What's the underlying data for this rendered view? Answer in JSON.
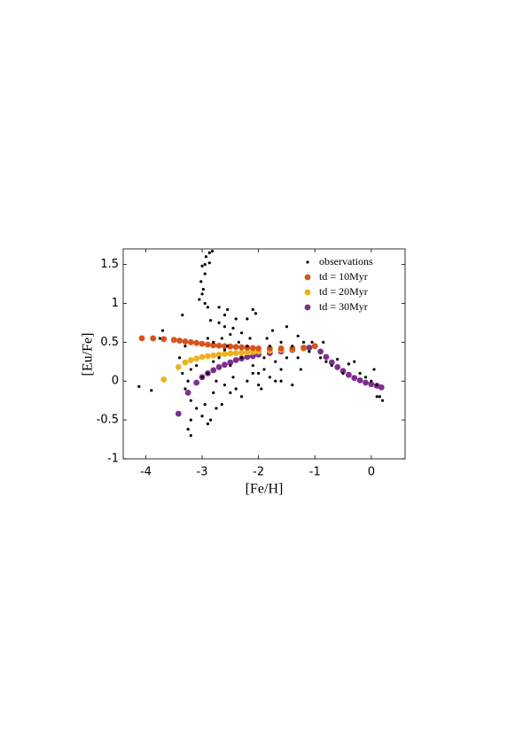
{
  "chart_data": {
    "type": "scatter",
    "xlabel": "[Fe/H]",
    "ylabel": "[Eu/Fe]",
    "xlim": [
      -4.4,
      0.6
    ],
    "ylim": [
      -1,
      1.7
    ],
    "xticks": [
      -4,
      -3,
      -2,
      -1,
      0
    ],
    "yticks": [
      -1,
      -0.5,
      0,
      0.5,
      1,
      1.5
    ],
    "legend": "upper right",
    "series": [
      {
        "name": "observations",
        "color": "#000000",
        "x": [
          -2.82,
          -2.87,
          -2.93,
          -2.87,
          -2.95,
          -3.0,
          -2.95,
          -3.02,
          -2.98,
          -3.0,
          -2.95,
          -2.9,
          -3.05,
          -3.35,
          -2.7,
          -2.6,
          -2.55,
          -2.1,
          -2.05,
          -2.2,
          -2.4,
          -2.6,
          -2.7,
          -2.85,
          -2.5,
          -2.3,
          -2.45,
          -3.7,
          -3.75,
          -1.5,
          -1.75,
          -1.3,
          -2.8,
          -2.9,
          -2.65,
          -3.2,
          -3.25,
          -3.2,
          -3.0,
          -3.1,
          -2.9,
          -2.85,
          -2.95,
          -3.2,
          -3.3,
          -3.25,
          -4.12,
          -3.9,
          -2.8,
          -2.6,
          -2.4,
          -2.2,
          -2.0,
          -1.8,
          -1.6,
          -1.4,
          -0.9,
          -0.8,
          -0.7,
          -0.6,
          -0.4,
          -0.3,
          -0.2,
          -0.1,
          0.0,
          0.05,
          0.1,
          0.1,
          0.15,
          0.2,
          -0.5,
          -1.2,
          -1.05,
          -0.85,
          -1.1,
          -1.4,
          -1.6,
          -1.8,
          -1.9,
          -2.1,
          -2.3,
          -2.5,
          -2.6,
          -2.2,
          -1.7,
          -1.5,
          -1.3,
          -2.0,
          -2.7,
          -3.4,
          -3.35,
          -3.2,
          -3.1,
          -2.9,
          -3.0,
          -2.75,
          -2.5,
          -2.3,
          -2.1,
          -1.9,
          -1.7,
          -1.95,
          -2.65,
          -2.75,
          -2.45,
          -2.55,
          -2.35,
          -1.25,
          -1.6,
          -2.8,
          -3.3,
          -2.15,
          -1.85
        ],
        "y": [
          1.67,
          1.65,
          1.6,
          1.52,
          1.5,
          1.48,
          1.38,
          1.28,
          1.18,
          1.12,
          1.0,
          0.95,
          1.05,
          0.85,
          0.95,
          0.85,
          0.92,
          0.92,
          0.87,
          0.8,
          0.8,
          0.7,
          0.75,
          0.78,
          0.6,
          0.62,
          0.68,
          0.65,
          0.55,
          0.7,
          0.65,
          0.58,
          0.5,
          0.55,
          0.55,
          -0.7,
          -0.62,
          -0.5,
          -0.45,
          -0.35,
          -0.55,
          -0.5,
          -0.3,
          -0.25,
          -0.1,
          0.0,
          -0.07,
          -0.12,
          -0.15,
          -0.05,
          -0.1,
          0.0,
          -0.05,
          0.05,
          0.0,
          -0.05,
          0.3,
          0.25,
          0.2,
          0.28,
          0.22,
          0.25,
          0.1,
          0.05,
          0.0,
          0.15,
          -0.05,
          -0.2,
          -0.2,
          -0.25,
          0.1,
          0.5,
          0.5,
          0.5,
          0.38,
          0.45,
          0.5,
          0.45,
          0.3,
          0.2,
          0.3,
          0.2,
          0.4,
          0.45,
          0.25,
          0.3,
          0.3,
          0.1,
          0.3,
          0.3,
          0.1,
          0.15,
          0.2,
          0.1,
          0.05,
          0.0,
          -0.15,
          -0.2,
          0.1,
          0.15,
          0.0,
          -0.1,
          -0.3,
          -0.35,
          0.05,
          0.45,
          0.5,
          0.15,
          0.15,
          0.25,
          0.45,
          0.55,
          0.55
        ]
      },
      {
        "name": "td = 10Myr",
        "color": "#d95319",
        "x": [
          -4.07,
          -3.87,
          -3.68,
          -3.5,
          -3.4,
          -3.3,
          -3.2,
          -3.1,
          -3.0,
          -2.9,
          -2.8,
          -2.7,
          -2.6,
          -2.5,
          -2.4,
          -2.3,
          -2.2,
          -2.1,
          -2.0,
          -1.8,
          -1.6,
          -1.4,
          -1.2,
          -1.0
        ],
        "y": [
          0.55,
          0.55,
          0.54,
          0.53,
          0.52,
          0.51,
          0.5,
          0.49,
          0.48,
          0.47,
          0.46,
          0.455,
          0.45,
          0.445,
          0.44,
          0.435,
          0.43,
          0.425,
          0.42,
          0.42,
          0.42,
          0.42,
          0.43,
          0.45
        ]
      },
      {
        "name": "td = 20Myr",
        "color": "#edb120",
        "x": [
          -3.68,
          -3.42,
          -3.3,
          -3.2,
          -3.1,
          -3.0,
          -2.9,
          -2.8,
          -2.7,
          -2.6,
          -2.5,
          -2.4,
          -2.3,
          -2.2,
          -2.1,
          -2.0,
          -1.8,
          -1.6,
          -1.4,
          -1.2,
          -1.0
        ],
        "y": [
          0.02,
          0.18,
          0.24,
          0.27,
          0.29,
          0.31,
          0.32,
          0.33,
          0.34,
          0.35,
          0.355,
          0.36,
          0.365,
          0.37,
          0.375,
          0.38,
          0.39,
          0.4,
          0.41,
          0.42,
          0.45
        ]
      },
      {
        "name": "td = 30Myr",
        "color": "#7e2f8e",
        "x": [
          -3.42,
          -3.25,
          -3.1,
          -3.0,
          -2.9,
          -2.8,
          -2.7,
          -2.6,
          -2.5,
          -2.4,
          -2.3,
          -2.2,
          -2.1,
          -2.0,
          -1.8,
          -1.6,
          -1.4,
          -1.2,
          -1.1,
          -1.0,
          -0.9,
          -0.8,
          -0.7,
          -0.6,
          -0.5,
          -0.4,
          -0.3,
          -0.2,
          -0.1,
          0.0,
          0.1,
          0.18
        ],
        "y": [
          -0.42,
          -0.15,
          -0.02,
          0.05,
          0.1,
          0.14,
          0.18,
          0.21,
          0.24,
          0.27,
          0.29,
          0.31,
          0.32,
          0.34,
          0.36,
          0.38,
          0.4,
          0.42,
          0.43,
          0.45,
          0.38,
          0.31,
          0.24,
          0.18,
          0.13,
          0.08,
          0.04,
          0.01,
          -0.02,
          -0.04,
          -0.06,
          -0.08
        ]
      }
    ]
  }
}
